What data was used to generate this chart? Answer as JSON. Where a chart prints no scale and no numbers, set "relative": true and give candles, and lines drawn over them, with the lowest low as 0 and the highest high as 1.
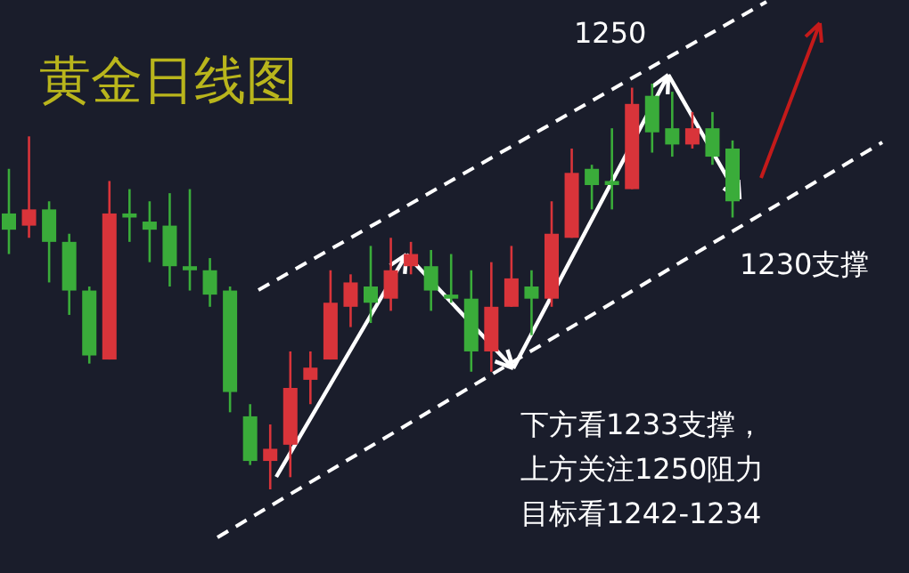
{
  "chart_data": {
    "type": "candlestick",
    "title": "黄金日线图",
    "relative": true,
    "categories": [
      null,
      null,
      null,
      null,
      null,
      null,
      null,
      null,
      null,
      null,
      null,
      null,
      null,
      null,
      null,
      null,
      null,
      null,
      null,
      null,
      null,
      null,
      null,
      null,
      null,
      null,
      null,
      null,
      null,
      null,
      null,
      null,
      null,
      null,
      null,
      null,
      null
    ],
    "ohlc": [
      [
        0.68,
        0.79,
        0.58,
        0.64
      ],
      [
        0.65,
        0.87,
        0.62,
        0.69
      ],
      [
        0.69,
        0.71,
        0.51,
        0.61
      ],
      [
        0.61,
        0.63,
        0.43,
        0.49
      ],
      [
        0.49,
        0.5,
        0.31,
        0.33
      ],
      [
        0.32,
        0.76,
        0.32,
        0.68
      ],
      [
        0.68,
        0.74,
        0.61,
        0.67
      ],
      [
        0.66,
        0.71,
        0.56,
        0.64
      ],
      [
        0.65,
        0.73,
        0.5,
        0.55
      ],
      [
        0.55,
        0.74,
        0.49,
        0.54
      ],
      [
        0.54,
        0.57,
        0.45,
        0.48
      ],
      [
        0.49,
        0.5,
        0.19,
        0.24
      ],
      [
        0.18,
        0.21,
        0.06,
        0.07
      ],
      [
        0.07,
        0.16,
        0,
        0.1
      ],
      [
        0.11,
        0.34,
        0.03,
        0.25
      ],
      [
        0.27,
        0.34,
        0.21,
        0.3
      ],
      [
        0.32,
        0.54,
        0.32,
        0.46
      ],
      [
        0.45,
        0.53,
        0.4,
        0.51
      ],
      [
        0.5,
        0.6,
        0.41,
        0.46
      ],
      [
        0.47,
        0.62,
        0.44,
        0.54
      ],
      [
        0.55,
        0.61,
        0.53,
        0.58
      ],
      [
        0.55,
        0.59,
        0.44,
        0.49
      ],
      [
        0.48,
        0.58,
        0.46,
        0.47
      ],
      [
        0.47,
        0.54,
        0.29,
        0.34
      ],
      [
        0.34,
        0.56,
        0.29,
        0.45
      ],
      [
        0.45,
        0.6,
        0.45,
        0.52
      ],
      [
        0.5,
        0.54,
        0.38,
        0.47
      ],
      [
        0.47,
        0.71,
        0.45,
        0.63
      ],
      [
        0.62,
        0.84,
        0.62,
        0.78
      ],
      [
        0.79,
        0.8,
        0.69,
        0.75
      ],
      [
        0.76,
        0.89,
        0.69,
        0.75
      ],
      [
        0.74,
        0.99,
        0.74,
        0.95
      ],
      [
        0.97,
        1,
        0.83,
        0.88
      ],
      [
        0.89,
        0.98,
        0.82,
        0.85
      ],
      [
        0.85,
        0.93,
        0.84,
        0.89
      ],
      [
        0.89,
        0.93,
        0.8,
        0.82
      ],
      [
        0.84,
        0.86,
        0.67,
        0.71
      ]
    ],
    "colors": [
      "#3aac3a",
      "#d9343a",
      "#3aac3a",
      "#3aac3a",
      "#3aac3a",
      "#d9343a",
      "#3aac3a",
      "#3aac3a",
      "#3aac3a",
      "#3aac3a",
      "#3aac3a",
      "#3aac3a",
      "#3aac3a",
      "#d9343a",
      "#d9343a",
      "#d9343a",
      "#d9343a",
      "#d9343a",
      "#3aac3a",
      "#d9343a",
      "#d9343a",
      "#3aac3a",
      "#3aac3a",
      "#3aac3a",
      "#d9343a",
      "#d9343a",
      "#3aac3a",
      "#d9343a",
      "#d9343a",
      "#3aac3a",
      "#3aac3a",
      "#d9343a",
      "#3aac3a",
      "#3aac3a",
      "#d9343a",
      "#3aac3a",
      "#3aac3a"
    ],
    "annotations": [
      "1250",
      "1230支撑",
      "下方看1233支撑，",
      "上方关注1250阻力",
      "目标看1242-1234"
    ]
  }
}
